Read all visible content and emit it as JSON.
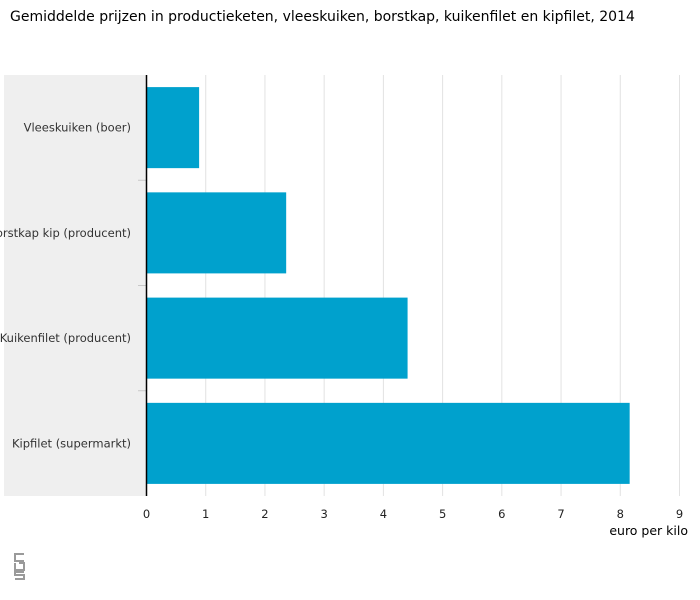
{
  "chart_data": {
    "type": "bar",
    "orientation": "horizontal",
    "title": "Gemiddelde prijzen in productieketen, vleeskuiken, borstkap, kuikenfilet en kipfilet, 2014",
    "categories": [
      "Vleeskuiken (boer)",
      "Borstkap kip (producent)",
      "Kuikenfilet (producent)",
      "Kipfilet (supermarkt)"
    ],
    "values": [
      0.88,
      2.35,
      4.4,
      8.15
    ],
    "xlabel": "euro per kilo",
    "ylabel": "",
    "xlim": [
      0,
      9
    ],
    "xticks": [
      "0",
      "1",
      "2",
      "3",
      "4",
      "5",
      "6",
      "7",
      "8",
      "9"
    ],
    "grid": true,
    "bar_color": "#00a1cd"
  },
  "logo": {
    "icon": "cbs-logo-icon"
  }
}
